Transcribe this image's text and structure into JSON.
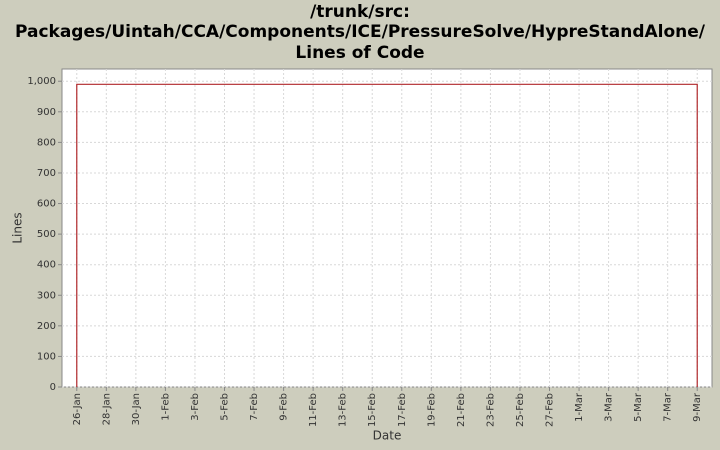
{
  "chart_data": {
    "type": "line",
    "title": [
      "/trunk/src:",
      "Packages/Uintah/CCA/Components/ICE/PressureSolve/HypreStandAlone/",
      "Lines of Code"
    ],
    "x_label": "Date",
    "y_label": "Lines",
    "x": [
      "26-Jan",
      "26-Jan",
      "9-Mar",
      "9-Mar"
    ],
    "series": [
      {
        "name": "Lines of Code",
        "color": "#b0282b",
        "values": [
          0,
          990,
          990,
          0
        ]
      }
    ],
    "xlim": [
      "25-Jan",
      "10-Mar"
    ],
    "xticks": [
      "26-Jan",
      "28-Jan",
      "30-Jan",
      "1-Feb",
      "3-Feb",
      "5-Feb",
      "7-Feb",
      "9-Feb",
      "11-Feb",
      "13-Feb",
      "15-Feb",
      "17-Feb",
      "19-Feb",
      "21-Feb",
      "23-Feb",
      "25-Feb",
      "27-Feb",
      "1-Mar",
      "3-Mar",
      "5-Mar",
      "7-Mar",
      "9-Mar"
    ],
    "ylim": [
      0,
      1040
    ],
    "yticks": [
      0,
      100,
      200,
      300,
      400,
      500,
      600,
      700,
      800,
      900,
      {
        "value": 1000,
        "label": "1,000"
      }
    ],
    "grid": true
  }
}
